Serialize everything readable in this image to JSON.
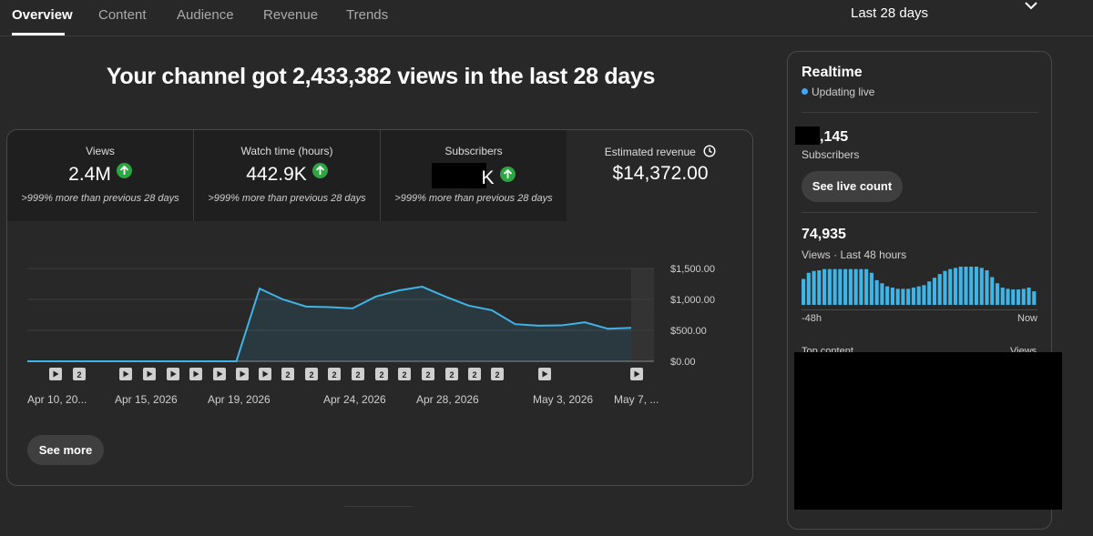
{
  "tabs": [
    {
      "label": "Overview",
      "active": true
    },
    {
      "label": "Content",
      "active": false
    },
    {
      "label": "Audience",
      "active": false
    },
    {
      "label": "Revenue",
      "active": false
    },
    {
      "label": "Trends",
      "active": false
    }
  ],
  "period": {
    "label": "Last 28 days"
  },
  "headline": "Your channel got 2,433,382 views in the last 28 days",
  "metrics": {
    "views": {
      "label": "Views",
      "value": "2.4M",
      "comparison": ">999% more than previous 28 days"
    },
    "watch_time": {
      "label": "Watch time (hours)",
      "value": "442.9K",
      "comparison": ">999% more than previous 28 days"
    },
    "subscribers": {
      "label": "Subscribers",
      "value_suffix": "K",
      "comparison": ">999% more than previous 28 days"
    },
    "revenue": {
      "label": "Estimated revenue",
      "value": "$14,372.00"
    }
  },
  "chart_data": {
    "type": "area",
    "x": [
      "Apr 10",
      "Apr 11",
      "Apr 12",
      "Apr 13",
      "Apr 14",
      "Apr 15",
      "Apr 16",
      "Apr 17",
      "Apr 18",
      "Apr 19",
      "Apr 20",
      "Apr 21",
      "Apr 22",
      "Apr 23",
      "Apr 24",
      "Apr 25",
      "Apr 26",
      "Apr 27",
      "Apr 28",
      "Apr 29",
      "Apr 30",
      "May 1",
      "May 2",
      "May 3",
      "May 4",
      "May 5",
      "May 6"
    ],
    "values": [
      0,
      0,
      0,
      0,
      0,
      0,
      0,
      0,
      0,
      0,
      1175,
      1000,
      885,
      875,
      855,
      1045,
      1145,
      1205,
      1045,
      900,
      825,
      600,
      575,
      580,
      630,
      525,
      540
    ],
    "x_tick_labels": [
      "Apr 10, 20...",
      "Apr 15, 2026",
      "Apr 19, 2026",
      "Apr 24, 2026",
      "Apr 28, 2026",
      "May 3, 2026",
      "May 7, ..."
    ],
    "y_tick_labels": [
      "$1,500.00",
      "$1,000.00",
      "$500.00",
      "$0.00"
    ],
    "ylim": [
      0,
      1500
    ],
    "color": "#41b4e6",
    "markers": [
      "play",
      "2",
      "play",
      "play",
      "play",
      "play",
      "play",
      "play",
      "2",
      "2",
      "2",
      "2",
      "2",
      "2",
      "2",
      "2",
      "2",
      "2",
      "play",
      "play"
    ]
  },
  "see_more": "See more",
  "realtime": {
    "title": "Realtime",
    "status": "Updating live",
    "subscribers_suffix": ",145",
    "subscribers_label": "Subscribers",
    "live_count_button": "See live count",
    "views": "74,935",
    "views_label": "Views · Last 48 hours",
    "axis_left": "-48h",
    "axis_right": "Now",
    "top_content_label": "Top content",
    "top_content_col": "Views",
    "bar_values": [
      42,
      52,
      55,
      56,
      58,
      58,
      58,
      58,
      58,
      58,
      58,
      58,
      58,
      52,
      40,
      35,
      30,
      28,
      26,
      26,
      26,
      28,
      30,
      32,
      38,
      44,
      50,
      55,
      58,
      60,
      62,
      62,
      62,
      62,
      60,
      56,
      45,
      35,
      28,
      26,
      25,
      25,
      26,
      28,
      22
    ],
    "bar_color": "#41b4e6"
  }
}
